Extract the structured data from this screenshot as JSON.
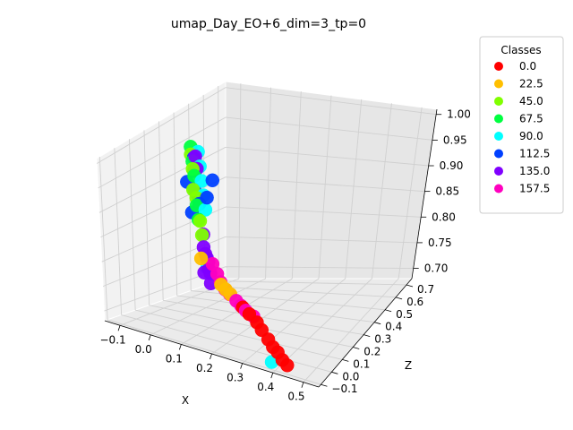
{
  "chart_data": {
    "type": "scatter",
    "projection": "3d",
    "title": "umap_Day_EO+6_dim=3_tp=0",
    "xlabel": "X",
    "ylabel": "Z",
    "zlabel": "",
    "xticks": [
      "−0.1",
      "0.0",
      "0.1",
      "0.2",
      "0.3",
      "0.4",
      "0.5"
    ],
    "yticks": [
      "−0.1",
      "0.0",
      "0.1",
      "0.2",
      "0.3",
      "0.4",
      "0.5",
      "0.6",
      "0.7"
    ],
    "zticks": [
      "0.70",
      "0.75",
      "0.80",
      "0.85",
      "0.90",
      "0.95",
      "1.00"
    ],
    "xlim": [
      -0.15,
      0.55
    ],
    "ylim": [
      -0.12,
      0.75
    ],
    "zlim": [
      0.68,
      1.01
    ],
    "grid": true,
    "legend": {
      "title": "Classes",
      "placement": "outside-top-right",
      "entries": [
        {
          "label": "0.0",
          "color": "#ff0000"
        },
        {
          "label": "22.5",
          "color": "#ffbf00"
        },
        {
          "label": "45.0",
          "color": "#80ff00"
        },
        {
          "label": "67.5",
          "color": "#00ff40"
        },
        {
          "label": "90.0",
          "color": "#00ffff"
        },
        {
          "label": "112.5",
          "color": "#0040ff"
        },
        {
          "label": "135.0",
          "color": "#8000ff"
        },
        {
          "label": "157.5",
          "color": "#ff00bf"
        }
      ]
    },
    "series": [
      {
        "class": "0.0",
        "color": "#ff0000",
        "points": [
          [
            0.22,
            0.08,
            0.74
          ],
          [
            0.25,
            0.06,
            0.735
          ],
          [
            0.28,
            0.05,
            0.725
          ],
          [
            0.3,
            0.04,
            0.715
          ],
          [
            0.33,
            0.02,
            0.705
          ],
          [
            0.35,
            0.01,
            0.695
          ],
          [
            0.37,
            0.0,
            0.69
          ],
          [
            0.39,
            -0.01,
            0.68
          ],
          [
            0.41,
            -0.02,
            0.675
          ]
        ]
      },
      {
        "class": "22.5",
        "color": "#ffbf00",
        "points": [
          [
            0.13,
            0.12,
            0.765
          ],
          [
            0.15,
            0.11,
            0.76
          ],
          [
            0.17,
            0.1,
            0.755
          ],
          [
            0.05,
            0.15,
            0.8
          ]
        ]
      },
      {
        "class": "45.0",
        "color": "#80ff00",
        "points": [
          [
            -0.12,
            0.45,
            0.93
          ],
          [
            -0.1,
            0.42,
            0.91
          ],
          [
            -0.06,
            0.36,
            0.87
          ],
          [
            -0.02,
            0.3,
            0.84
          ],
          [
            0.0,
            0.27,
            0.82
          ],
          [
            -0.08,
            0.38,
            0.88
          ]
        ]
      },
      {
        "class": "67.5",
        "color": "#00ff40",
        "points": [
          [
            -0.13,
            0.47,
            0.94
          ],
          [
            -0.11,
            0.44,
            0.92
          ],
          [
            -0.09,
            0.41,
            0.9
          ],
          [
            -0.05,
            0.34,
            0.86
          ],
          [
            -0.03,
            0.31,
            0.84
          ]
        ]
      },
      {
        "class": "90.0",
        "color": "#00ffff",
        "points": [
          [
            -0.1,
            0.46,
            0.935
          ],
          [
            -0.08,
            0.43,
            0.915
          ],
          [
            -0.06,
            0.4,
            0.895
          ],
          [
            -0.04,
            0.37,
            0.875
          ],
          [
            -0.02,
            0.34,
            0.855
          ],
          [
            0.04,
            0.22,
            0.77
          ],
          [
            0.34,
            0.03,
            0.66
          ]
        ]
      },
      {
        "class": "112.5",
        "color": "#0040ff",
        "points": [
          [
            -0.11,
            0.45,
            0.925
          ],
          [
            -0.1,
            0.43,
            0.905
          ],
          [
            -0.12,
            0.42,
            0.885
          ],
          [
            -0.09,
            0.41,
            0.875
          ],
          [
            -0.07,
            0.39,
            0.87
          ],
          [
            -0.05,
            0.36,
            0.86
          ],
          [
            -0.01,
            0.33,
            0.88
          ],
          [
            0.0,
            0.35,
            0.91
          ],
          [
            -0.08,
            0.37,
            0.84
          ]
        ]
      },
      {
        "class": "135.0",
        "color": "#8000ff",
        "points": [
          [
            -0.1,
            0.44,
            0.93
          ],
          [
            -0.09,
            0.43,
            0.91
          ],
          [
            0.0,
            0.28,
            0.82
          ],
          [
            0.01,
            0.26,
            0.8
          ],
          [
            0.02,
            0.25,
            0.79
          ],
          [
            0.03,
            0.24,
            0.785
          ],
          [
            0.04,
            0.23,
            0.78
          ],
          [
            0.05,
            0.21,
            0.77
          ],
          [
            0.06,
            0.2,
            0.765
          ],
          [
            0.03,
            0.22,
            0.76
          ],
          [
            0.07,
            0.18,
            0.75
          ]
        ]
      },
      {
        "class": "157.5",
        "color": "#ff00bf",
        "points": [
          [
            0.1,
            0.16,
            0.775
          ],
          [
            0.12,
            0.14,
            0.765
          ],
          [
            0.14,
            0.13,
            0.755
          ],
          [
            0.16,
            0.12,
            0.75
          ],
          [
            0.19,
            0.1,
            0.745
          ],
          [
            0.21,
            0.09,
            0.74
          ],
          [
            0.23,
            0.08,
            0.735
          ],
          [
            0.26,
            0.07,
            0.73
          ],
          [
            0.08,
            0.17,
            0.79
          ]
        ]
      }
    ]
  }
}
